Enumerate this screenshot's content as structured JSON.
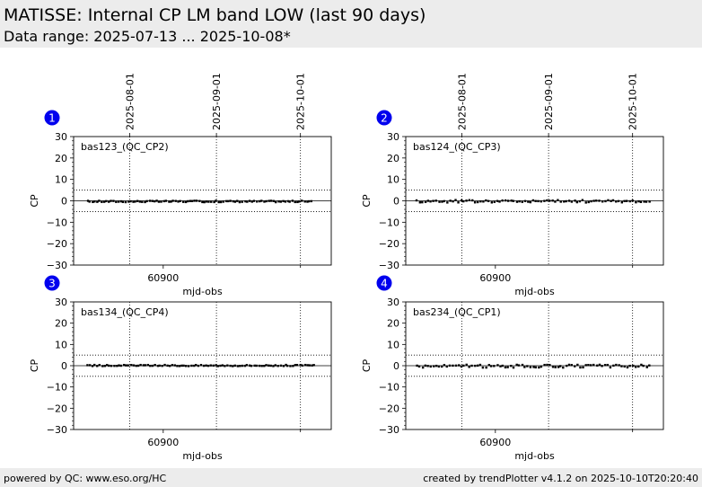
{
  "header": {
    "title": "MATISSE: Internal CP LM band LOW (last 90 days)",
    "subtitle": "Data range: 2025-07-13 ... 2025-10-08*"
  },
  "footer": {
    "left": "powered by QC: www.eso.org/HC",
    "right": "created by trendPlotter v4.1.2 on 2025-10-10T20:20:40"
  },
  "colors": {
    "data": "#000000",
    "badge": "#0000ee",
    "header_bg": "#ececec"
  },
  "chart_data": [
    {
      "type": "scatter",
      "badge": "1",
      "label": "bas123_(QC_CP2)",
      "xlabel": "mjd-obs",
      "ylabel": "CP",
      "ylim": [
        -30,
        30
      ],
      "yticks": [
        -30,
        -20,
        -10,
        0,
        10,
        20,
        30
      ],
      "xlim": [
        60868,
        60960
      ],
      "xtick_labels": [
        "60900"
      ],
      "xticks": [
        60900
      ],
      "top_date_labels": [
        "2025-08-01",
        "2025-09-01",
        "2025-10-01"
      ],
      "date_mjd": [
        60888,
        60919,
        60949
      ],
      "hlines": [
        {
          "y": 0,
          "style": "solid"
        },
        {
          "y": 5,
          "style": "dotted"
        },
        {
          "y": -5,
          "style": "dotted"
        }
      ],
      "x_start": 60873,
      "x_end": 60953,
      "n_points": 95,
      "y_center": -0.3,
      "y_amplitude": 0.35
    },
    {
      "type": "scatter",
      "badge": "2",
      "label": "bas124_(QC_CP3)",
      "xlabel": "mjd-obs",
      "ylabel": "CP",
      "ylim": [
        -30,
        30
      ],
      "yticks": [
        -30,
        -20,
        -10,
        0,
        10,
        20,
        30
      ],
      "xlim": [
        60868,
        60960
      ],
      "xtick_labels": [
        "60900"
      ],
      "xticks": [
        60900
      ],
      "top_date_labels": [
        "2025-08-01",
        "2025-09-01",
        "2025-10-01"
      ],
      "date_mjd": [
        60888,
        60919,
        60949
      ],
      "hlines": [
        {
          "y": 0,
          "style": "solid"
        },
        {
          "y": 5,
          "style": "dotted"
        },
        {
          "y": -5,
          "style": "dotted"
        }
      ],
      "x_start": 60872,
      "x_end": 60955,
      "n_points": 85,
      "y_center": -0.2,
      "y_amplitude": 0.6
    },
    {
      "type": "scatter",
      "badge": "3",
      "label": "bas134_(QC_CP4)",
      "xlabel": "mjd-obs",
      "ylabel": "CP",
      "ylim": [
        -30,
        30
      ],
      "yticks": [
        -30,
        -20,
        -10,
        0,
        10,
        20,
        30
      ],
      "xlim": [
        60868,
        60960
      ],
      "xtick_labels": [
        "60900"
      ],
      "xticks": [
        60900
      ],
      "top_date_labels": [],
      "date_mjd": [
        60888,
        60919,
        60949
      ],
      "hlines": [
        {
          "y": 0,
          "style": "solid"
        },
        {
          "y": 5,
          "style": "dotted"
        },
        {
          "y": -5,
          "style": "dotted"
        }
      ],
      "x_start": 60873,
      "x_end": 60954,
      "n_points": 95,
      "y_center": 0.1,
      "y_amplitude": 0.3
    },
    {
      "type": "scatter",
      "badge": "4",
      "label": "bas234_(QC_CP1)",
      "xlabel": "mjd-obs",
      "ylabel": "CP",
      "ylim": [
        -30,
        30
      ],
      "yticks": [
        -30,
        -20,
        -10,
        0,
        10,
        20,
        30
      ],
      "xlim": [
        60868,
        60960
      ],
      "xtick_labels": [
        "60900"
      ],
      "xticks": [
        60900
      ],
      "top_date_labels": [],
      "date_mjd": [
        60888,
        60919,
        60949
      ],
      "hlines": [
        {
          "y": 0,
          "style": "solid"
        },
        {
          "y": 5,
          "style": "dotted"
        },
        {
          "y": -5,
          "style": "dotted"
        }
      ],
      "x_start": 60872,
      "x_end": 60955,
      "n_points": 85,
      "y_center": -0.2,
      "y_amplitude": 0.7
    }
  ]
}
